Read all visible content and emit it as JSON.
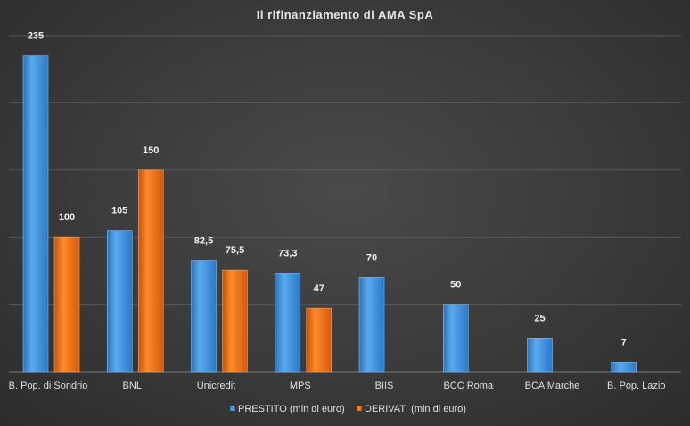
{
  "chart_data": {
    "type": "bar",
    "title": "Il rifinanziamento di AMA SpA",
    "categories": [
      "B. Pop. di Sondrio",
      "BNL",
      "Unicredit",
      "MPS",
      "BIIS",
      "BCC Roma",
      "BCA Marche",
      "B. Pop. Lazio"
    ],
    "series": [
      {
        "name": "PRESTITO (mln di euro)",
        "color": "#3a8fdc",
        "values": [
          235,
          105,
          82.5,
          73.3,
          70,
          50,
          25,
          7
        ],
        "labels": [
          "235",
          "105",
          "82,5",
          "73,3",
          "70",
          "50",
          "25",
          "7"
        ]
      },
      {
        "name": "DERIVATI (mln di euro)",
        "color": "#f06a10",
        "values": [
          100,
          150,
          75.5,
          47,
          null,
          null,
          null,
          null
        ],
        "labels": [
          "100",
          "150",
          "75,5",
          "47",
          "",
          "",
          "",
          ""
        ]
      }
    ],
    "ylim": [
      0,
      250
    ],
    "grid": true,
    "legend_position": "bottom"
  }
}
